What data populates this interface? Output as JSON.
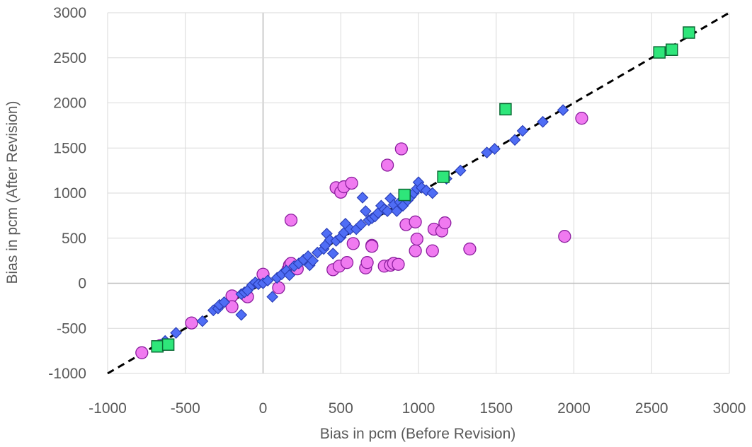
{
  "chart_data": {
    "type": "scatter",
    "xlabel": "Bias in pcm (Before Revision)",
    "ylabel": "Bias in pcm (After Revision)",
    "xlim": [
      -1000,
      3000
    ],
    "ylim": [
      -1000,
      3000
    ],
    "xticks": [
      -1000,
      -500,
      0,
      500,
      1000,
      1500,
      2000,
      2500,
      3000
    ],
    "yticks": [
      -1000,
      -500,
      0,
      500,
      1000,
      1500,
      2000,
      2500,
      3000
    ],
    "xtick_labels": [
      "-1000",
      "-500",
      "0",
      "500",
      "1000",
      "1500",
      "2000",
      "2500",
      "3000"
    ],
    "ytick_labels": [
      "-1000",
      "-500",
      "0",
      "500",
      "1000",
      "1500",
      "2000",
      "2500",
      "3000"
    ],
    "grid": true,
    "reference_line": {
      "style": "dashed",
      "color": "#000000",
      "points": [
        [
          -1000,
          -1000
        ],
        [
          3000,
          3000
        ]
      ]
    },
    "series": [
      {
        "marker": "circle",
        "color": "#F07AF0",
        "edge": "#8B1E9E",
        "points": [
          [
            -780,
            -770
          ],
          [
            -660,
            -690
          ],
          [
            -460,
            -440
          ],
          [
            -200,
            -140
          ],
          [
            -200,
            -260
          ],
          [
            -100,
            -150
          ],
          [
            0,
            100
          ],
          [
            100,
            -50
          ],
          [
            160,
            150
          ],
          [
            170,
            200
          ],
          [
            180,
            220
          ],
          [
            180,
            700
          ],
          [
            220,
            160
          ],
          [
            450,
            150
          ],
          [
            470,
            1060
          ],
          [
            490,
            190
          ],
          [
            500,
            1010
          ],
          [
            520,
            1070
          ],
          [
            540,
            230
          ],
          [
            570,
            1110
          ],
          [
            580,
            440
          ],
          [
            660,
            170
          ],
          [
            670,
            230
          ],
          [
            700,
            420
          ],
          [
            700,
            410
          ],
          [
            780,
            190
          ],
          [
            800,
            1310
          ],
          [
            820,
            200
          ],
          [
            840,
            220
          ],
          [
            870,
            210
          ],
          [
            890,
            1490
          ],
          [
            920,
            650
          ],
          [
            980,
            360
          ],
          [
            980,
            680
          ],
          [
            990,
            490
          ],
          [
            1090,
            360
          ],
          [
            1100,
            600
          ],
          [
            1150,
            580
          ],
          [
            1170,
            670
          ],
          [
            1330,
            380
          ],
          [
            1940,
            520
          ],
          [
            2050,
            1830
          ]
        ]
      },
      {
        "marker": "diamond",
        "color": "#4F6DF5",
        "edge": "#2A3FB8",
        "points": [
          [
            -630,
            -640
          ],
          [
            -560,
            -550
          ],
          [
            -390,
            -420
          ],
          [
            -320,
            -300
          ],
          [
            -290,
            -280
          ],
          [
            -280,
            -240
          ],
          [
            -250,
            -210
          ],
          [
            -140,
            -350
          ],
          [
            -140,
            -120
          ],
          [
            -120,
            -100
          ],
          [
            -100,
            -80
          ],
          [
            -70,
            -20
          ],
          [
            -50,
            10
          ],
          [
            -30,
            -10
          ],
          [
            0,
            0
          ],
          [
            30,
            30
          ],
          [
            60,
            -150
          ],
          [
            90,
            60
          ],
          [
            120,
            100
          ],
          [
            150,
            140
          ],
          [
            170,
            90
          ],
          [
            200,
            190
          ],
          [
            230,
            220
          ],
          [
            260,
            260
          ],
          [
            290,
            300
          ],
          [
            300,
            200
          ],
          [
            320,
            250
          ],
          [
            350,
            340
          ],
          [
            390,
            380
          ],
          [
            400,
            420
          ],
          [
            410,
            550
          ],
          [
            430,
            480
          ],
          [
            450,
            330
          ],
          [
            470,
            470
          ],
          [
            500,
            510
          ],
          [
            520,
            560
          ],
          [
            530,
            660
          ],
          [
            560,
            600
          ],
          [
            600,
            600
          ],
          [
            630,
            650
          ],
          [
            640,
            950
          ],
          [
            660,
            800
          ],
          [
            680,
            700
          ],
          [
            700,
            720
          ],
          [
            720,
            740
          ],
          [
            740,
            780
          ],
          [
            760,
            860
          ],
          [
            780,
            820
          ],
          [
            800,
            800
          ],
          [
            820,
            940
          ],
          [
            840,
            870
          ],
          [
            860,
            800
          ],
          [
            880,
            900
          ],
          [
            900,
            860
          ],
          [
            930,
            920
          ],
          [
            950,
            960
          ],
          [
            970,
            1000
          ],
          [
            990,
            1050
          ],
          [
            1000,
            1120
          ],
          [
            1020,
            1060
          ],
          [
            1050,
            1030
          ],
          [
            1090,
            1000
          ],
          [
            1180,
            1160
          ],
          [
            1270,
            1250
          ],
          [
            1440,
            1450
          ],
          [
            1490,
            1490
          ],
          [
            1620,
            1590
          ],
          [
            1670,
            1690
          ],
          [
            1800,
            1790
          ],
          [
            1930,
            1920
          ]
        ]
      },
      {
        "marker": "square",
        "color": "#2EE67A",
        "edge": "#0B6B35",
        "points": [
          [
            -680,
            -700
          ],
          [
            -610,
            -680
          ],
          [
            910,
            980
          ],
          [
            1160,
            1180
          ],
          [
            1560,
            1930
          ],
          [
            2550,
            2560
          ],
          [
            2630,
            2590
          ],
          [
            2740,
            2780
          ]
        ]
      }
    ]
  }
}
